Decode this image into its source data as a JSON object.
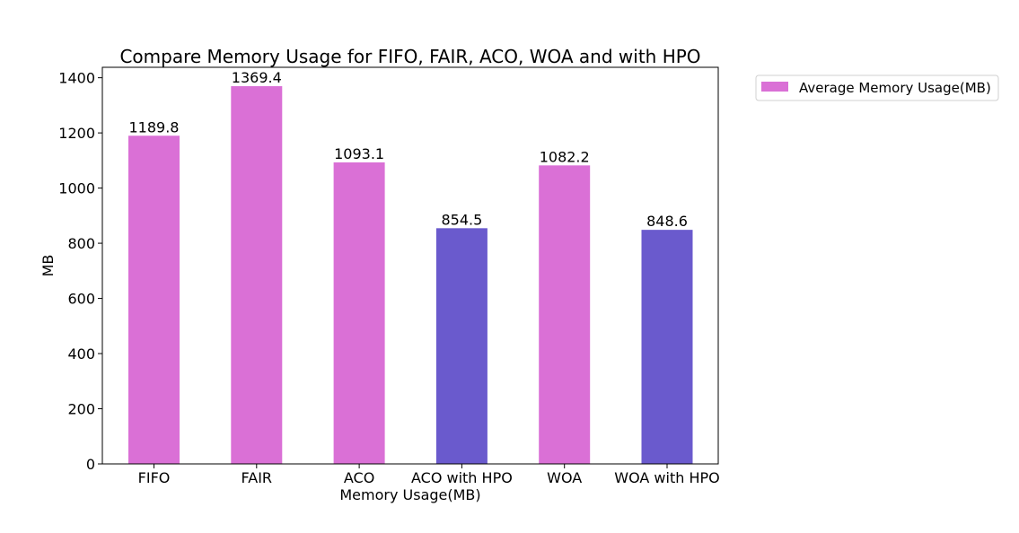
{
  "chart_data": {
    "type": "bar",
    "title": "Compare Memory Usage for FIFO, FAIR, ACO, WOA and with HPO",
    "xlabel": "Memory Usage(MB)",
    "ylabel": "MB",
    "categories": [
      "FIFO",
      "FAIR",
      "ACO",
      "ACO with HPO",
      "WOA",
      "WOA with HPO"
    ],
    "values": [
      1189.8,
      1369.4,
      1093.1,
      854.5,
      1082.2,
      848.6
    ],
    "data_labels": [
      "1189.8",
      "1369.4",
      "1093.1",
      "854.5",
      "1082.2",
      "848.6"
    ],
    "bar_colors": [
      "#DA70D6",
      "#DA70D6",
      "#DA70D6",
      "#6A5ACD",
      "#DA70D6",
      "#6A5ACD"
    ],
    "ylim": [
      0,
      1437.87
    ],
    "yticks": [
      0,
      200,
      400,
      600,
      800,
      1000,
      1200,
      1400
    ],
    "ytick_labels": [
      "0",
      "200",
      "400",
      "600",
      "800",
      "1000",
      "1200",
      "1400"
    ],
    "grid": false,
    "legend": {
      "placement": "outside-top-right",
      "entries": [
        {
          "label": "Average Memory Usage(MB)",
          "color": "#DA70D6"
        }
      ]
    }
  }
}
